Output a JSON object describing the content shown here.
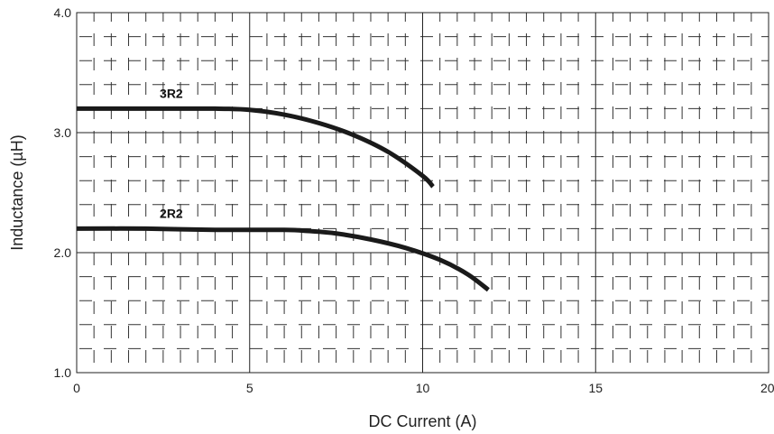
{
  "chart_data": {
    "type": "line",
    "title": "",
    "xlabel": "DC Current (A)",
    "ylabel": "Inductance (µH)",
    "xlim": [
      0,
      20
    ],
    "ylim": [
      1.0,
      4.0
    ],
    "x_ticks": [
      0,
      5,
      10,
      15,
      20
    ],
    "x_tick_labels": [
      "0",
      "5",
      "10",
      "15",
      "20"
    ],
    "y_ticks": [
      1.0,
      2.0,
      3.0,
      4.0
    ],
    "y_tick_labels": [
      "1.0",
      "2.0",
      "3.0",
      "4.0"
    ],
    "grid": true,
    "minor_grid": "dashed",
    "series": [
      {
        "name": "3R2",
        "color": "#1a1a1a",
        "x": [
          0,
          2,
          4,
          5,
          6,
          7,
          8,
          9,
          10,
          10.3
        ],
        "y": [
          3.2,
          3.2,
          3.2,
          3.19,
          3.15,
          3.08,
          2.98,
          2.84,
          2.64,
          2.55
        ]
      },
      {
        "name": "2R2",
        "color": "#1a1a1a",
        "x": [
          0,
          2,
          4,
          6,
          6.7,
          7.5,
          8.5,
          9.5,
          10.5,
          11.3,
          11.9
        ],
        "y": [
          2.2,
          2.2,
          2.19,
          2.19,
          2.18,
          2.16,
          2.11,
          2.04,
          1.94,
          1.82,
          1.69
        ]
      }
    ]
  }
}
